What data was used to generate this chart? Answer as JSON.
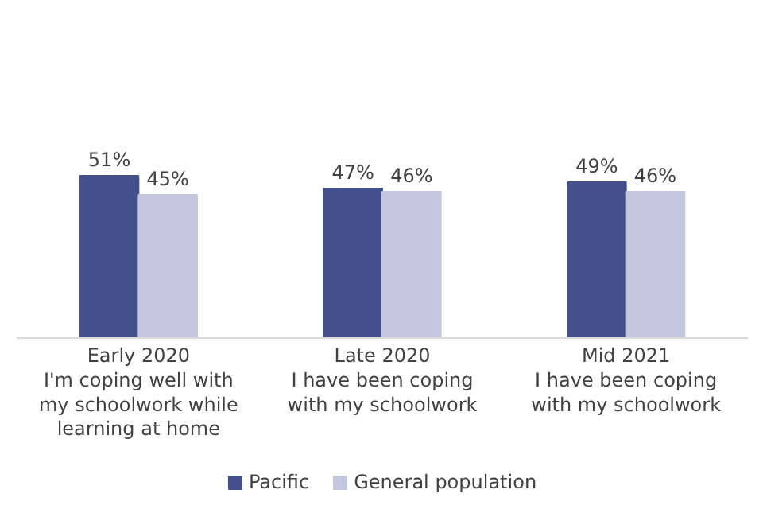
{
  "chart_data": {
    "type": "bar",
    "categories": [
      "Early 2020\nI'm coping well with\nmy schoolwork while\nlearning at home",
      "Late 2020\nI have been coping\nwith my schoolwork",
      "Mid 2021\nI have been coping\nwith my schoolwork"
    ],
    "series": [
      {
        "name": "Pacific",
        "color": "#44508a",
        "values": [
          51,
          47,
          49
        ],
        "value_labels": [
          "51%",
          "47%",
          "49%"
        ]
      },
      {
        "name": "General population",
        "color": "#c3c6df",
        "values": [
          45,
          46,
          46
        ],
        "value_labels": [
          "45%",
          "46%",
          "46%"
        ]
      }
    ],
    "legend": "bottom"
  }
}
